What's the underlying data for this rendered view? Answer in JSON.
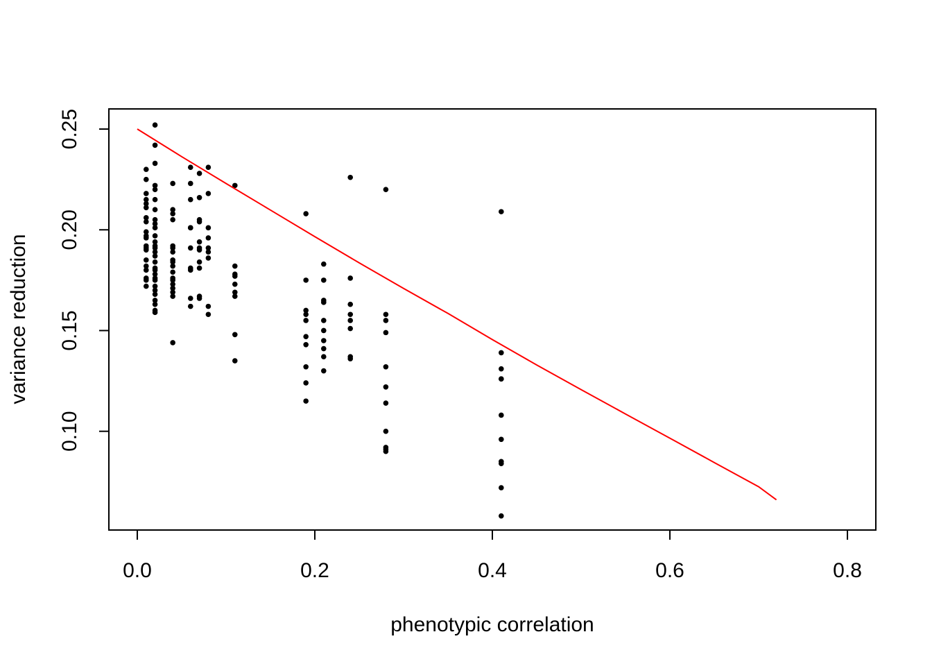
{
  "chart_data": {
    "type": "scatter",
    "title": "",
    "xlabel": "phenotypic correlation",
    "ylabel": "variance reduction",
    "xlim": [
      -0.032,
      0.832
    ],
    "ylim": [
      0.051,
      0.26
    ],
    "xticks": [
      "0.0",
      "0.2",
      "0.4",
      "0.6",
      "0.8"
    ],
    "yticks": [
      "0.10",
      "0.15",
      "0.20",
      "0.25"
    ],
    "point_color": "#000000",
    "curve_color": "#ff0000",
    "grid": false,
    "legend": "none",
    "points": {
      "x": [
        0.01,
        0.01,
        0.01,
        0.01,
        0.01,
        0.01,
        0.01,
        0.01,
        0.01,
        0.01,
        0.01,
        0.01,
        0.01,
        0.01,
        0.01,
        0.01,
        0.01,
        0.01,
        0.01,
        0.01,
        0.02,
        0.02,
        0.02,
        0.02,
        0.02,
        0.02,
        0.02,
        0.02,
        0.02,
        0.02,
        0.02,
        0.02,
        0.02,
        0.02,
        0.02,
        0.02,
        0.02,
        0.02,
        0.02,
        0.02,
        0.02,
        0.02,
        0.02,
        0.02,
        0.02,
        0.02,
        0.02,
        0.02,
        0.02,
        0.04,
        0.04,
        0.04,
        0.04,
        0.04,
        0.04,
        0.04,
        0.04,
        0.04,
        0.04,
        0.04,
        0.04,
        0.04,
        0.04,
        0.04,
        0.04,
        0.04,
        0.04,
        0.06,
        0.06,
        0.06,
        0.06,
        0.06,
        0.06,
        0.06,
        0.06,
        0.06,
        0.06,
        0.07,
        0.07,
        0.07,
        0.07,
        0.07,
        0.07,
        0.07,
        0.07,
        0.07,
        0.07,
        0.07,
        0.08,
        0.08,
        0.08,
        0.08,
        0.08,
        0.08,
        0.08,
        0.08,
        0.08,
        0.11,
        0.11,
        0.11,
        0.11,
        0.11,
        0.11,
        0.11,
        0.11,
        0.11,
        0.19,
        0.19,
        0.19,
        0.19,
        0.19,
        0.19,
        0.19,
        0.19,
        0.19,
        0.19,
        0.21,
        0.21,
        0.21,
        0.21,
        0.21,
        0.21,
        0.21,
        0.21,
        0.21,
        0.21,
        0.24,
        0.24,
        0.24,
        0.24,
        0.24,
        0.24,
        0.24,
        0.24,
        0.28,
        0.28,
        0.28,
        0.28,
        0.28,
        0.28,
        0.28,
        0.28,
        0.28,
        0.28,
        0.28,
        0.41,
        0.41,
        0.41,
        0.41,
        0.41,
        0.41,
        0.41,
        0.41,
        0.41,
        0.41,
        0.41
      ],
      "y": [
        0.23,
        0.225,
        0.218,
        0.215,
        0.213,
        0.211,
        0.206,
        0.204,
        0.199,
        0.197,
        0.196,
        0.192,
        0.191,
        0.19,
        0.185,
        0.182,
        0.18,
        0.176,
        0.175,
        0.172,
        0.252,
        0.242,
        0.233,
        0.222,
        0.22,
        0.215,
        0.21,
        0.205,
        0.203,
        0.201,
        0.197,
        0.194,
        0.192,
        0.191,
        0.189,
        0.187,
        0.184,
        0.181,
        0.18,
        0.176,
        0.175,
        0.172,
        0.17,
        0.168,
        0.165,
        0.163,
        0.16,
        0.159,
        0.178,
        0.223,
        0.21,
        0.208,
        0.205,
        0.192,
        0.191,
        0.189,
        0.185,
        0.184,
        0.182,
        0.179,
        0.176,
        0.175,
        0.173,
        0.171,
        0.169,
        0.167,
        0.144,
        0.231,
        0.223,
        0.215,
        0.201,
        0.201,
        0.191,
        0.181,
        0.18,
        0.166,
        0.162,
        0.228,
        0.216,
        0.205,
        0.204,
        0.194,
        0.191,
        0.184,
        0.181,
        0.167,
        0.166,
        0.19,
        0.231,
        0.218,
        0.201,
        0.196,
        0.191,
        0.189,
        0.186,
        0.162,
        0.158,
        0.222,
        0.182,
        0.178,
        0.177,
        0.173,
        0.169,
        0.167,
        0.148,
        0.135,
        0.208,
        0.175,
        0.16,
        0.158,
        0.155,
        0.147,
        0.143,
        0.132,
        0.124,
        0.115,
        0.183,
        0.175,
        0.165,
        0.164,
        0.155,
        0.15,
        0.145,
        0.141,
        0.137,
        0.13,
        0.226,
        0.176,
        0.163,
        0.158,
        0.155,
        0.151,
        0.137,
        0.136,
        0.22,
        0.158,
        0.155,
        0.149,
        0.132,
        0.122,
        0.114,
        0.1,
        0.092,
        0.091,
        0.09,
        0.209,
        0.139,
        0.131,
        0.126,
        0.108,
        0.096,
        0.085,
        0.084,
        0.072,
        0.058,
        0.126
      ]
    },
    "curve": {
      "x": [
        0.0,
        0.05,
        0.1,
        0.15,
        0.2,
        0.25,
        0.3,
        0.35,
        0.4,
        0.45,
        0.5,
        0.55,
        0.6,
        0.65,
        0.7,
        0.72
      ],
      "y": [
        0.25,
        0.2363,
        0.223,
        0.2098,
        0.1966,
        0.1836,
        0.1709,
        0.1585,
        0.1455,
        0.1329,
        0.1207,
        0.1086,
        0.0966,
        0.0845,
        0.0725,
        0.066
      ]
    }
  }
}
